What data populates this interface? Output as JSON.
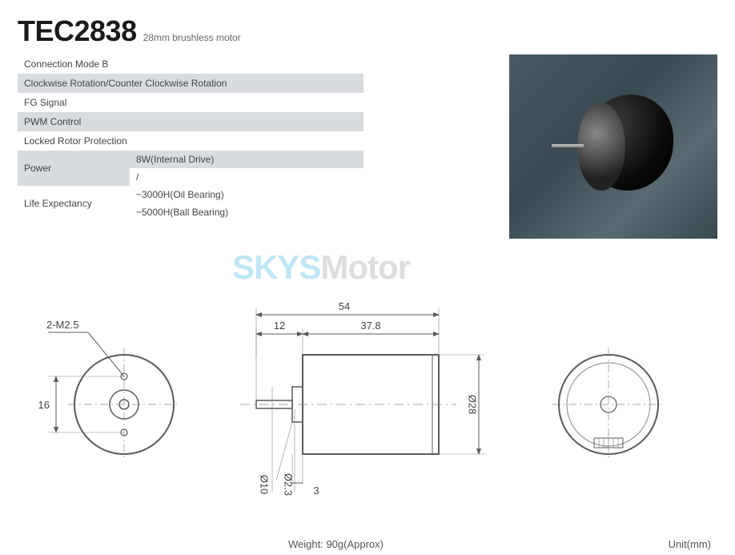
{
  "header": {
    "model": "TEC2838",
    "subtitle": "28mm brushless motor"
  },
  "spec_rows": [
    {
      "shaded": false,
      "label": "Connection Mode B"
    },
    {
      "shaded": true,
      "label": "Clockwise Rotation/Counter Clockwise Rotation"
    },
    {
      "shaded": false,
      "label": "FG Signal"
    },
    {
      "shaded": true,
      "label": "PWM Control"
    },
    {
      "shaded": false,
      "label": "Locked Rotor Protection"
    }
  ],
  "power": {
    "label": "Power",
    "values": [
      "8W(Internal Drive)",
      "/"
    ],
    "row_shaded": [
      true,
      false
    ]
  },
  "life": {
    "label": "Life Expectancy",
    "values": [
      "~3000H(Oil Bearing)",
      "~5000H(Ball Bearing)"
    ],
    "row_shaded": [
      false,
      false
    ]
  },
  "watermark": {
    "a": "SKYS",
    "b": "Motor"
  },
  "drawing": {
    "front_view": {
      "hole_label": "2-M2.5",
      "hole_pitch": "16"
    },
    "side_view": {
      "overall_length": "54",
      "shaft_length": "12",
      "body_label": "37.8",
      "shaft_diameter": "Ø2.3",
      "boss_diameter": "Ø10",
      "body_diameter": "Ø28",
      "step_depth": "3"
    },
    "unit_label": "Unit(mm)",
    "weight_label": "Weight: 90g(Approx)"
  },
  "style": {
    "shaded_bg": "#d8dce0",
    "text_color": "#555555",
    "line_color": "#5a5a5a",
    "thin_line_color": "#888888",
    "dim_font_size": 13
  }
}
